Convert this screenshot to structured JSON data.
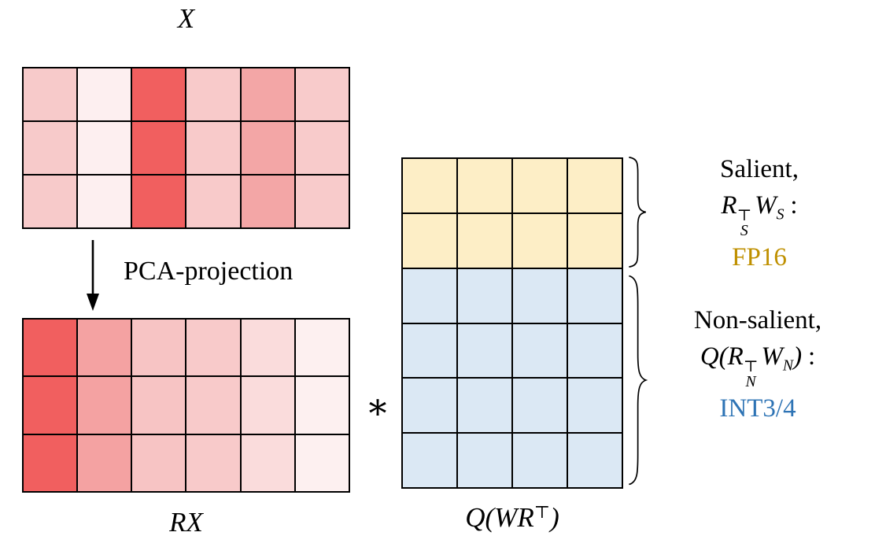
{
  "labels": {
    "x_matrix": "X",
    "pca_arrow": "PCA-projection",
    "rx_matrix": "RX",
    "operator": "∗",
    "q_label_prefix": "Q(WR",
    "q_label_sup": "⊤",
    "q_label_suffix": ")"
  },
  "annotations": {
    "salient": {
      "line1": "Salient,",
      "f_base": "R",
      "f_sup": "⊤",
      "f_sub": "S",
      "f_w": "W",
      "f_wsub": "S",
      "f_colon": ":",
      "precision": "FP16"
    },
    "non_salient": {
      "line1": "Non-salient,",
      "f_open": "Q(",
      "f_base": "R",
      "f_sup": "⊤",
      "f_sub": "N",
      "f_w": "W",
      "f_wsub": "N",
      "f_close": ")",
      "f_colon": ":",
      "precision": "INT3/4"
    }
  },
  "colors": {
    "fp16": "#bf9000",
    "int34": "#2e74b5",
    "grid_line": "#000000",
    "salient_cell": "#fdeec6",
    "non_salient_cell": "#dbe8f4",
    "strong_red": "#f15f5f"
  },
  "matrices": {
    "x": {
      "rows": 3,
      "cols": 6,
      "column_colors": [
        "#f7caca",
        "#fdeff0",
        "#f15f5f",
        "#f8caca",
        "#f3a6a6",
        "#f8cbcb"
      ]
    },
    "rx": {
      "rows": 3,
      "cols": 6,
      "column_colors": [
        "#f15f5f",
        "#f4a2a2",
        "#f7c4c4",
        "#f8caca",
        "#fadcdc",
        "#fdf0f0"
      ]
    },
    "q": {
      "rows": 6,
      "cols": 4,
      "row_colors": [
        "#fdeec6",
        "#fdeec6",
        "#dbe8f4",
        "#dbe8f4",
        "#dbe8f4",
        "#dbe8f4"
      ]
    }
  }
}
